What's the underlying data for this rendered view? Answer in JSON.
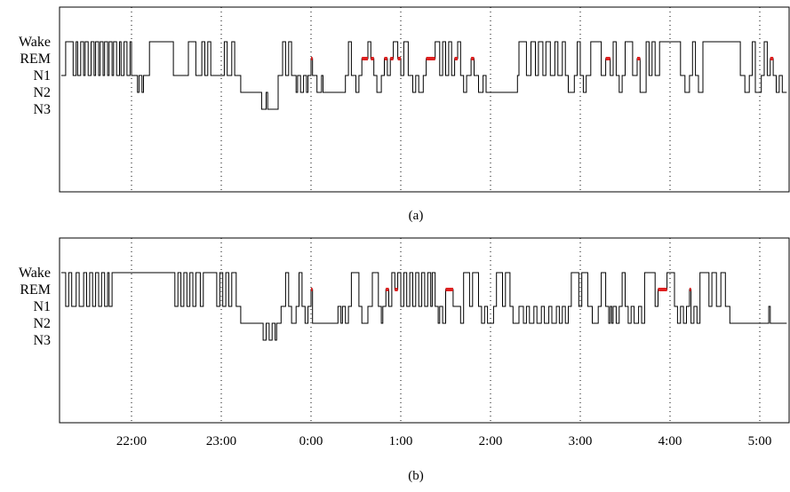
{
  "colors": {
    "trace": "#000000",
    "rem": "#e02020",
    "grid": "#000000"
  },
  "chart_data": [
    {
      "type": "line",
      "caption": "(a)",
      "y_categories": [
        "Wake",
        "REM",
        "N1",
        "N2",
        "N3"
      ],
      "x_ticks": [
        "22:00",
        "23:00",
        "0:00",
        "1:00",
        "2:00",
        "3:00",
        "4:00",
        "5:00"
      ],
      "show_x_tick_labels": false,
      "xlim": [
        "21:13",
        "5:18"
      ],
      "grid": "vertical dotted at each hour",
      "rem_color": "#e02020",
      "hypnogram": [
        [
          "21:13",
          "N1"
        ],
        [
          "21:16",
          "Wake"
        ],
        [
          "21:21",
          "N1"
        ],
        [
          "21:23",
          "Wake"
        ],
        [
          "21:24",
          "N1"
        ],
        [
          "21:26",
          "Wake"
        ],
        [
          "21:28",
          "N1"
        ],
        [
          "21:29",
          "Wake"
        ],
        [
          "21:31",
          "N1"
        ],
        [
          "21:33",
          "Wake"
        ],
        [
          "21:35",
          "N1"
        ],
        [
          "21:36",
          "Wake"
        ],
        [
          "21:38",
          "N1"
        ],
        [
          "21:39",
          "Wake"
        ],
        [
          "21:41",
          "N1"
        ],
        [
          "21:42",
          "Wake"
        ],
        [
          "21:44",
          "N1"
        ],
        [
          "21:45",
          "Wake"
        ],
        [
          "21:47",
          "N1"
        ],
        [
          "21:48",
          "Wake"
        ],
        [
          "21:50",
          "N1"
        ],
        [
          "21:52",
          "Wake"
        ],
        [
          "21:53",
          "N1"
        ],
        [
          "21:55",
          "Wake"
        ],
        [
          "21:57",
          "N1"
        ],
        [
          "21:59",
          "Wake"
        ],
        [
          "22:00",
          "N1"
        ],
        [
          "22:04",
          "N2"
        ],
        [
          "22:05",
          "N1"
        ],
        [
          "22:07",
          "N2"
        ],
        [
          "22:08",
          "N1"
        ],
        [
          "22:12",
          "Wake"
        ],
        [
          "22:28",
          "N1"
        ],
        [
          "22:38",
          "Wake"
        ],
        [
          "22:43",
          "N1"
        ],
        [
          "22:47",
          "Wake"
        ],
        [
          "22:49",
          "N1"
        ],
        [
          "22:51",
          "Wake"
        ],
        [
          "22:53",
          "N1"
        ],
        [
          "23:02",
          "Wake"
        ],
        [
          "23:04",
          "N1"
        ],
        [
          "23:07",
          "Wake"
        ],
        [
          "23:09",
          "N1"
        ],
        [
          "23:13",
          "N2"
        ],
        [
          "23:27",
          "N3"
        ],
        [
          "23:30",
          "N2"
        ],
        [
          "23:31",
          "N3"
        ],
        [
          "23:38",
          "N1"
        ],
        [
          "23:41",
          "Wake"
        ],
        [
          "23:43",
          "N1"
        ],
        [
          "23:45",
          "Wake"
        ],
        [
          "23:47",
          "N1"
        ],
        [
          "23:50",
          "N2"
        ],
        [
          "23:51",
          "N1"
        ],
        [
          "23:53",
          "N2"
        ],
        [
          "23:55",
          "N1"
        ],
        [
          "23:57",
          "N2"
        ],
        [
          "23:58",
          "N1"
        ],
        [
          "0:00",
          "REM"
        ],
        [
          "0:01",
          "N1"
        ],
        [
          "0:04",
          "N2"
        ],
        [
          "0:07",
          "N1"
        ],
        [
          "0:08",
          "N2"
        ],
        [
          "0:23",
          "N1"
        ],
        [
          "0:25",
          "Wake"
        ],
        [
          "0:27",
          "N1"
        ],
        [
          "0:30",
          "N2"
        ],
        [
          "0:32",
          "N1"
        ],
        [
          "0:34",
          "REM"
        ],
        [
          "0:38",
          "Wake"
        ],
        [
          "0:40",
          "REM"
        ],
        [
          "0:42",
          "N1"
        ],
        [
          "0:44",
          "N2"
        ],
        [
          "0:47",
          "N1"
        ],
        [
          "0:49",
          "REM"
        ],
        [
          "0:51",
          "N1"
        ],
        [
          "0:53",
          "REM"
        ],
        [
          "0:55",
          "Wake"
        ],
        [
          "0:58",
          "REM"
        ],
        [
          "1:00",
          "N1"
        ],
        [
          "1:02",
          "Wake"
        ],
        [
          "1:05",
          "N1"
        ],
        [
          "1:08",
          "N2"
        ],
        [
          "1:10",
          "N1"
        ],
        [
          "1:12",
          "N2"
        ],
        [
          "1:15",
          "N1"
        ],
        [
          "1:17",
          "REM"
        ],
        [
          "1:23",
          "Wake"
        ],
        [
          "1:26",
          "N1"
        ],
        [
          "1:28",
          "Wake"
        ],
        [
          "1:30",
          "N1"
        ],
        [
          "1:32",
          "Wake"
        ],
        [
          "1:34",
          "N1"
        ],
        [
          "1:36",
          "REM"
        ],
        [
          "1:38",
          "Wake"
        ],
        [
          "1:40",
          "N1"
        ],
        [
          "1:42",
          "N2"
        ],
        [
          "1:44",
          "N1"
        ],
        [
          "1:47",
          "REM"
        ],
        [
          "1:49",
          "N1"
        ],
        [
          "1:52",
          "N2"
        ],
        [
          "1:55",
          "N1"
        ],
        [
          "1:57",
          "N2"
        ],
        [
          "2:18",
          "N1"
        ],
        [
          "2:19",
          "Wake"
        ],
        [
          "2:24",
          "N1"
        ],
        [
          "2:27",
          "Wake"
        ],
        [
          "2:30",
          "N1"
        ],
        [
          "2:32",
          "Wake"
        ],
        [
          "2:35",
          "N1"
        ],
        [
          "2:37",
          "Wake"
        ],
        [
          "2:40",
          "N1"
        ],
        [
          "2:43",
          "Wake"
        ],
        [
          "2:45",
          "N1"
        ],
        [
          "2:48",
          "Wake"
        ],
        [
          "2:50",
          "N1"
        ],
        [
          "2:52",
          "N2"
        ],
        [
          "2:56",
          "N1"
        ],
        [
          "2:58",
          "Wake"
        ],
        [
          "3:00",
          "N1"
        ],
        [
          "3:02",
          "N2"
        ],
        [
          "3:04",
          "N1"
        ],
        [
          "3:07",
          "Wake"
        ],
        [
          "3:14",
          "N1"
        ],
        [
          "3:17",
          "REM"
        ],
        [
          "3:20",
          "N1"
        ],
        [
          "3:22",
          "Wake"
        ],
        [
          "3:24",
          "N1"
        ],
        [
          "3:26",
          "N2"
        ],
        [
          "3:28",
          "N1"
        ],
        [
          "3:30",
          "Wake"
        ],
        [
          "3:35",
          "N1"
        ],
        [
          "3:38",
          "REM"
        ],
        [
          "3:40",
          "N2"
        ],
        [
          "3:44",
          "Wake"
        ],
        [
          "3:46",
          "N1"
        ],
        [
          "3:48",
          "Wake"
        ],
        [
          "3:50",
          "N1"
        ],
        [
          "3:53",
          "Wake"
        ],
        [
          "4:07",
          "N1"
        ],
        [
          "4:10",
          "N2"
        ],
        [
          "4:13",
          "N1"
        ],
        [
          "4:15",
          "Wake"
        ],
        [
          "4:17",
          "N1"
        ],
        [
          "4:19",
          "N2"
        ],
        [
          "4:22",
          "Wake"
        ],
        [
          "4:47",
          "N1"
        ],
        [
          "4:50",
          "N2"
        ],
        [
          "4:53",
          "N1"
        ],
        [
          "4:55",
          "Wake"
        ],
        [
          "4:57",
          "N2"
        ],
        [
          "5:01",
          "N1"
        ],
        [
          "5:03",
          "Wake"
        ],
        [
          "5:05",
          "N1"
        ],
        [
          "5:07",
          "REM"
        ],
        [
          "5:09",
          "N1"
        ],
        [
          "5:11",
          "N2"
        ],
        [
          "5:13",
          "N1"
        ],
        [
          "5:15",
          "N2"
        ],
        [
          "5:18",
          "N2"
        ]
      ],
      "rem_periods": [
        [
          "0:00",
          "0:01"
        ],
        [
          "0:34",
          "0:38"
        ],
        [
          "0:40",
          "0:42"
        ],
        [
          "0:49",
          "0:51"
        ],
        [
          "0:53",
          "0:55"
        ],
        [
          "0:58",
          "1:00"
        ],
        [
          "1:17",
          "1:23"
        ],
        [
          "1:36",
          "1:38"
        ],
        [
          "1:47",
          "1:49"
        ],
        [
          "3:17",
          "3:20"
        ],
        [
          "3:38",
          "3:40"
        ],
        [
          "5:07",
          "5:09"
        ]
      ]
    },
    {
      "type": "line",
      "caption": "(b)",
      "y_categories": [
        "Wake",
        "REM",
        "N1",
        "N2",
        "N3"
      ],
      "x_ticks": [
        "22:00",
        "23:00",
        "0:00",
        "1:00",
        "2:00",
        "3:00",
        "4:00",
        "5:00"
      ],
      "show_x_tick_labels": true,
      "xlim": [
        "21:13",
        "5:18"
      ],
      "grid": "vertical dotted at each hour",
      "rem_color": "#e02020",
      "hypnogram": [
        [
          "21:13",
          "Wake"
        ],
        [
          "21:16",
          "N1"
        ],
        [
          "21:18",
          "Wake"
        ],
        [
          "21:20",
          "N1"
        ],
        [
          "21:23",
          "Wake"
        ],
        [
          "21:25",
          "N1"
        ],
        [
          "21:28",
          "Wake"
        ],
        [
          "21:30",
          "N1"
        ],
        [
          "21:32",
          "Wake"
        ],
        [
          "21:34",
          "N1"
        ],
        [
          "21:36",
          "Wake"
        ],
        [
          "21:38",
          "N1"
        ],
        [
          "21:40",
          "Wake"
        ],
        [
          "21:42",
          "N1"
        ],
        [
          "21:44",
          "Wake"
        ],
        [
          "21:45",
          "N1"
        ],
        [
          "21:47",
          "Wake"
        ],
        [
          "22:00",
          "Wake"
        ],
        [
          "22:29",
          "N1"
        ],
        [
          "22:31",
          "Wake"
        ],
        [
          "22:33",
          "N1"
        ],
        [
          "22:35",
          "Wake"
        ],
        [
          "22:37",
          "N1"
        ],
        [
          "22:39",
          "Wake"
        ],
        [
          "22:41",
          "N1"
        ],
        [
          "22:43",
          "Wake"
        ],
        [
          "22:46",
          "N1"
        ],
        [
          "22:48",
          "Wake"
        ],
        [
          "22:57",
          "N1"
        ],
        [
          "22:59",
          "Wake"
        ],
        [
          "23:01",
          "N1"
        ],
        [
          "23:03",
          "Wake"
        ],
        [
          "23:05",
          "N1"
        ],
        [
          "23:07",
          "Wake"
        ],
        [
          "23:10",
          "N1"
        ],
        [
          "23:13",
          "N2"
        ],
        [
          "23:28",
          "N3"
        ],
        [
          "23:30",
          "N2"
        ],
        [
          "23:32",
          "N3"
        ],
        [
          "23:34",
          "N2"
        ],
        [
          "23:36",
          "N3"
        ],
        [
          "23:37",
          "N2"
        ],
        [
          "23:40",
          "N1"
        ],
        [
          "23:43",
          "Wake"
        ],
        [
          "23:45",
          "N1"
        ],
        [
          "23:47",
          "N2"
        ],
        [
          "23:50",
          "N1"
        ],
        [
          "23:52",
          "Wake"
        ],
        [
          "23:54",
          "N1"
        ],
        [
          "23:56",
          "N2"
        ],
        [
          "23:58",
          "N1"
        ],
        [
          "0:00",
          "REM"
        ],
        [
          "0:01",
          "N2"
        ],
        [
          "0:18",
          "N1"
        ],
        [
          "0:20",
          "N2"
        ],
        [
          "0:21",
          "N1"
        ],
        [
          "0:23",
          "N2"
        ],
        [
          "0:25",
          "N1"
        ],
        [
          "0:27",
          "Wake"
        ],
        [
          "0:32",
          "N1"
        ],
        [
          "0:34",
          "N2"
        ],
        [
          "0:38",
          "N1"
        ],
        [
          "0:41",
          "Wake"
        ],
        [
          "0:45",
          "N1"
        ],
        [
          "0:47",
          "N2"
        ],
        [
          "0:48",
          "N1"
        ],
        [
          "0:50",
          "REM"
        ],
        [
          "0:52",
          "N1"
        ],
        [
          "0:54",
          "Wake"
        ],
        [
          "0:56",
          "REM"
        ],
        [
          "0:58",
          "Wake"
        ],
        [
          "1:00",
          "N1"
        ],
        [
          "1:02",
          "Wake"
        ],
        [
          "1:04",
          "N1"
        ],
        [
          "1:06",
          "Wake"
        ],
        [
          "1:08",
          "N1"
        ],
        [
          "1:10",
          "Wake"
        ],
        [
          "1:12",
          "N1"
        ],
        [
          "1:14",
          "Wake"
        ],
        [
          "1:16",
          "N1"
        ],
        [
          "1:18",
          "Wake"
        ],
        [
          "1:20",
          "N1"
        ],
        [
          "1:21",
          "Wake"
        ],
        [
          "1:23",
          "N1"
        ],
        [
          "1:25",
          "N2"
        ],
        [
          "1:26",
          "N1"
        ],
        [
          "1:28",
          "N2"
        ],
        [
          "1:30",
          "REM"
        ],
        [
          "1:35",
          "N1"
        ],
        [
          "1:40",
          "N2"
        ],
        [
          "1:42",
          "Wake"
        ],
        [
          "1:46",
          "N1"
        ],
        [
          "1:48",
          "Wake"
        ],
        [
          "1:52",
          "N1"
        ],
        [
          "1:54",
          "N2"
        ],
        [
          "1:56",
          "N1"
        ],
        [
          "1:58",
          "N2"
        ],
        [
          "2:02",
          "N1"
        ],
        [
          "2:04",
          "Wake"
        ],
        [
          "2:08",
          "N1"
        ],
        [
          "2:10",
          "Wake"
        ],
        [
          "2:13",
          "N1"
        ],
        [
          "2:15",
          "N2"
        ],
        [
          "2:19",
          "N1"
        ],
        [
          "2:22",
          "N2"
        ],
        [
          "2:24",
          "N1"
        ],
        [
          "2:26",
          "N2"
        ],
        [
          "2:29",
          "N1"
        ],
        [
          "2:31",
          "N2"
        ],
        [
          "2:34",
          "N1"
        ],
        [
          "2:36",
          "N2"
        ],
        [
          "2:39",
          "N1"
        ],
        [
          "2:41",
          "N2"
        ],
        [
          "2:44",
          "N1"
        ],
        [
          "2:46",
          "N2"
        ],
        [
          "2:48",
          "N1"
        ],
        [
          "2:50",
          "N2"
        ],
        [
          "2:52",
          "N1"
        ],
        [
          "2:54",
          "Wake"
        ],
        [
          "2:59",
          "N1"
        ],
        [
          "3:01",
          "Wake"
        ],
        [
          "3:05",
          "N1"
        ],
        [
          "3:08",
          "N2"
        ],
        [
          "3:12",
          "N1"
        ],
        [
          "3:14",
          "Wake"
        ],
        [
          "3:17",
          "N1"
        ],
        [
          "3:19",
          "N2"
        ],
        [
          "3:20",
          "N1"
        ],
        [
          "3:21",
          "N2"
        ],
        [
          "3:22",
          "N1"
        ],
        [
          "3:24",
          "N2"
        ],
        [
          "3:26",
          "N1"
        ],
        [
          "3:28",
          "Wake"
        ],
        [
          "3:30",
          "N1"
        ],
        [
          "3:32",
          "N2"
        ],
        [
          "3:34",
          "N1"
        ],
        [
          "3:36",
          "N2"
        ],
        [
          "3:39",
          "N1"
        ],
        [
          "3:41",
          "N2"
        ],
        [
          "3:43",
          "Wake"
        ],
        [
          "3:50",
          "N1"
        ],
        [
          "3:52",
          "REM"
        ],
        [
          "3:58",
          "Wake"
        ],
        [
          "4:03",
          "N1"
        ],
        [
          "4:05",
          "N2"
        ],
        [
          "4:07",
          "N1"
        ],
        [
          "4:09",
          "N2"
        ],
        [
          "4:11",
          "N1"
        ],
        [
          "4:13",
          "REM"
        ],
        [
          "4:14",
          "N2"
        ],
        [
          "4:16",
          "N1"
        ],
        [
          "4:18",
          "N2"
        ],
        [
          "4:20",
          "Wake"
        ],
        [
          "4:26",
          "N1"
        ],
        [
          "4:28",
          "Wake"
        ],
        [
          "4:31",
          "N1"
        ],
        [
          "4:34",
          "Wake"
        ],
        [
          "4:37",
          "N1"
        ],
        [
          "4:40",
          "N2"
        ],
        [
          "5:06",
          "N1"
        ],
        [
          "5:07",
          "N2"
        ],
        [
          "5:18",
          "N2"
        ]
      ],
      "rem_periods": [
        [
          "0:00",
          "0:01"
        ],
        [
          "0:50",
          "0:52"
        ],
        [
          "0:56",
          "0:58"
        ],
        [
          "1:30",
          "1:35"
        ],
        [
          "3:52",
          "3:58"
        ],
        [
          "4:13",
          "4:14"
        ]
      ]
    }
  ]
}
